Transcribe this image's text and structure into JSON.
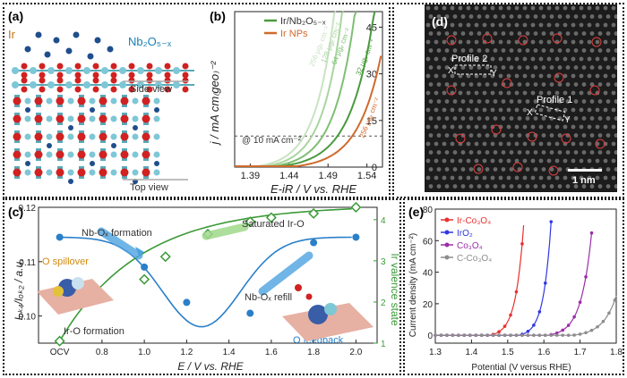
{
  "frame_color": "#1a1a1a",
  "panel_a": {
    "label": "(a)",
    "ir_label": "Ir",
    "nb_label": "Nb₂O₅₋ₓ",
    "side_view": "Side view",
    "top_view": "Top view",
    "colors": {
      "ir": "#1f4e8c",
      "o": "#d12121",
      "nb": "#7ec7d6",
      "bond": "#5aa9b8"
    }
  },
  "panel_b": {
    "label": "(b)",
    "legend": [
      {
        "name": "Ir/Nb₂O₅₋ₓ",
        "color": "#4a9a3e"
      },
      {
        "name": "Ir NPs",
        "color": "#d06a2c"
      }
    ],
    "ref_label": "@ 10 mA cm⁻²",
    "ylabel": "j / mA cm₍geo₎⁻²",
    "xlabel": "E-iR / V vs. RHE",
    "curve_labels": [
      "256 μgᵢᵣ cm⁻²",
      "128 μgᵢᵣ cm⁻²",
      "64 μgᵢᵣ cm⁻²",
      "32 μgᵢᵣ cm⁻²",
      "256 μgᵢᵣ cm⁻²"
    ]
  },
  "panel_c": {
    "label": "(c)",
    "ylabel_left": "Iₒₖ₄/Iₒₖ₂ / a.u.",
    "ylabel_right": "Ir valence state",
    "xlabel": "E / V vs. RHE",
    "annotations": {
      "o_spillover": "O spillover",
      "nb_formation": "Nb-Oₓ formation",
      "ir_formation": "Ir-O formation",
      "saturated": "Saturated Ir-O",
      "nb_refill": "Nb-Oₓ refill",
      "o_feedback": "O feedback"
    }
  },
  "panel_d": {
    "label": "(d)",
    "profile1": "Profile 1",
    "profile2": "Profile 2",
    "x": "X",
    "y": "Y",
    "scale": "1 nm"
  },
  "panel_e": {
    "label": "(e)",
    "ylabel": "Current density (mA cm⁻²)",
    "xlabel": "Potential (V versus RHE)"
  },
  "chart_data": [
    {
      "type": "line",
      "panel": "b",
      "xlim": [
        1.37,
        1.56
      ],
      "ylim": [
        0,
        50
      ],
      "xticks": [
        "1.39",
        "1.44",
        "1.49",
        "1.54"
      ],
      "yticks": [
        "0",
        "15",
        "30",
        "45"
      ],
      "reference_y": 10,
      "series": [
        {
          "name": "Ir/Nb₂O₅₋ₓ",
          "loading": "256",
          "color": "#c8e3c1",
          "onset": 1.4,
          "x10": 1.46
        },
        {
          "name": "Ir/Nb₂O₅₋ₓ",
          "loading": "128",
          "color": "#a8d59e",
          "onset": 1.41,
          "x10": 1.47
        },
        {
          "name": "Ir/Nb₂O₅₋ₓ",
          "loading": "64",
          "color": "#7fbf73",
          "onset": 1.42,
          "x10": 1.484
        },
        {
          "name": "Ir/Nb₂O₅₋ₓ",
          "loading": "32",
          "color": "#4a9a3e",
          "onset": 1.43,
          "x10": 1.503
        },
        {
          "name": "Ir NPs",
          "loading": "256",
          "color": "#d06a2c",
          "onset": 1.45,
          "x10": 1.522
        }
      ]
    },
    {
      "type": "scatter",
      "panel": "c",
      "x_categories": [
        "OCV",
        "0.8",
        "1.0",
        "1.2",
        "1.4",
        "1.6",
        "1.8",
        "2.0"
      ],
      "xlim": [
        0.5,
        2.1
      ],
      "ylim_left": [
        0.095,
        0.12
      ],
      "yticks_left": [
        "0.10",
        "0.11",
        "0.12"
      ],
      "ylim_right": [
        1,
        4.3
      ],
      "yticks_right": [
        "1",
        "2",
        "3",
        "4"
      ],
      "series": [
        {
          "name": "blue",
          "axis": "left",
          "color": "#2a7fc9",
          "x": [
            0.6,
            1.0,
            1.2,
            1.5,
            1.8,
            2.0
          ],
          "y": [
            0.1145,
            0.109,
            0.1025,
            0.1005,
            0.1135,
            0.1145
          ]
        },
        {
          "name": "green",
          "axis": "right",
          "color": "#3c9a38",
          "x": [
            0.6,
            1.0,
            1.1,
            1.3,
            1.5,
            1.6,
            1.8,
            2.0
          ],
          "y": [
            1.05,
            2.55,
            3.1,
            3.65,
            3.95,
            4.05,
            4.15,
            4.3
          ]
        }
      ]
    },
    {
      "type": "line",
      "panel": "e",
      "xlim": [
        1.3,
        1.8
      ],
      "ylim": [
        -5,
        80
      ],
      "xticks": [
        "1.3",
        "1.4",
        "1.5",
        "1.6",
        "1.7",
        "1.8"
      ],
      "yticks": [
        "0",
        "20",
        "40",
        "60",
        "80"
      ],
      "series": [
        {
          "name": "Ir-Co₃O₄",
          "color": "#e8312e",
          "onset": 1.45,
          "end_x": 1.545,
          "end_y": 73
        },
        {
          "name": "IrO₂",
          "color": "#2f37e0",
          "onset": 1.53,
          "end_x": 1.62,
          "end_y": 72
        },
        {
          "name": "Co₃O₄",
          "color": "#9b2da8",
          "onset": 1.61,
          "end_x": 1.735,
          "end_y": 72
        },
        {
          "name": "C-Co₃O₄",
          "color": "#8c8c8c",
          "onset": 1.68,
          "end_x": 1.8,
          "end_y": 25
        }
      ]
    }
  ]
}
